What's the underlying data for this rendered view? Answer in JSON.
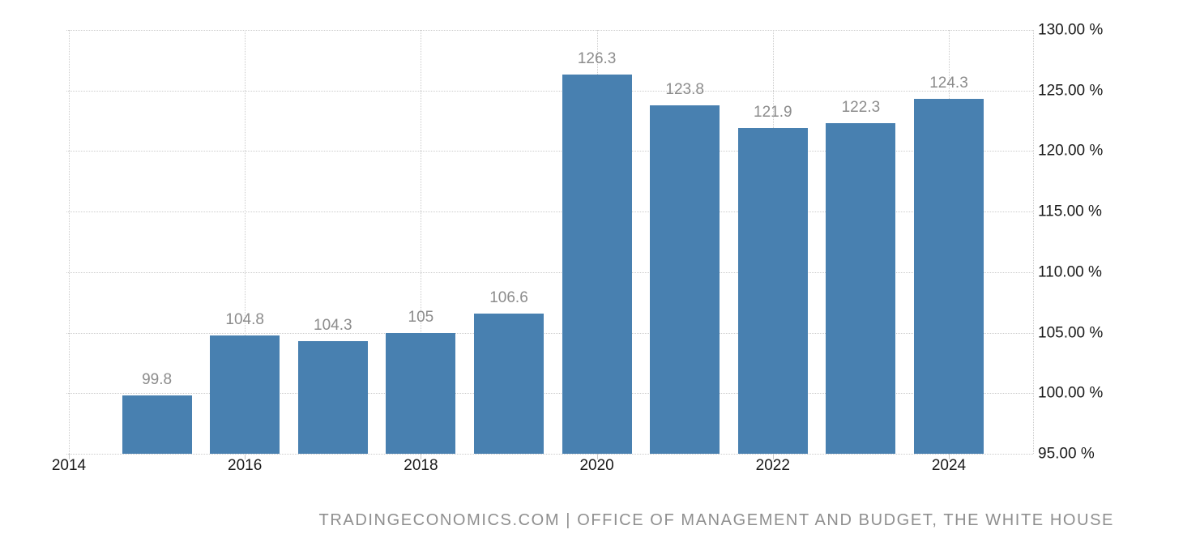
{
  "attribution": {
    "text": "TRADINGECONOMICS.COM | OFFICE OF MANAGEMENT AND BUDGET, THE WHITE HOUSE"
  },
  "colors": {
    "bar": "#4880B0",
    "bar_label": "#8c8c8c",
    "axis_text": "#1a1a1a",
    "grid": "#cccccc",
    "attribution_text": "#8f8f8f",
    "background": "#ffffff"
  },
  "chart_data": {
    "type": "bar",
    "title": "",
    "xlabel": "",
    "ylabel": "",
    "legend": "none",
    "grid": "dotted",
    "categories": [
      2015,
      2016,
      2017,
      2018,
      2019,
      2020,
      2021,
      2022,
      2023,
      2024
    ],
    "values": [
      99.8,
      104.8,
      104.3,
      105,
      106.6,
      126.3,
      123.8,
      121.9,
      122.3,
      124.3
    ],
    "data_labels": [
      "99.8",
      "104.8",
      "104.3",
      "105",
      "106.6",
      "126.3",
      "123.8",
      "121.9",
      "122.3",
      "124.3"
    ],
    "ylim": [
      95,
      130
    ],
    "yticks": [
      {
        "value": 130,
        "label": "130.00 %"
      },
      {
        "value": 125,
        "label": "125.00 %"
      },
      {
        "value": 120,
        "label": "120.00 %"
      },
      {
        "value": 115,
        "label": "115.00 %"
      },
      {
        "value": 110,
        "label": "110.00 %"
      },
      {
        "value": 105,
        "label": "105.00 %"
      },
      {
        "value": 100,
        "label": "100.00 %"
      },
      {
        "value": 95,
        "label": "95.00 %"
      }
    ],
    "xticks": [
      {
        "year": 2014,
        "label": "2014"
      },
      {
        "year": 2016,
        "label": "2016"
      },
      {
        "year": 2018,
        "label": "2018"
      },
      {
        "year": 2020,
        "label": "2020"
      },
      {
        "year": 2022,
        "label": "2022"
      },
      {
        "year": 2024,
        "label": "2024"
      }
    ],
    "yaxis_position": "right"
  }
}
